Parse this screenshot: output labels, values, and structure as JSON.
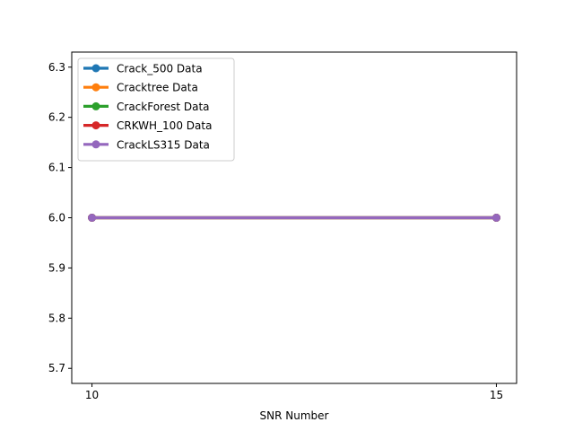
{
  "chart_data": {
    "type": "line",
    "title": "",
    "xlabel": "SNR Number",
    "ylabel": "",
    "x": [
      10,
      15
    ],
    "xlim": [
      9.75,
      15.25
    ],
    "ylim": [
      5.67,
      6.33
    ],
    "x_ticks": [
      "10",
      "15"
    ],
    "y_ticks": [
      "5.7",
      "5.8",
      "5.9",
      "6.0",
      "6.1",
      "6.2",
      "6.3"
    ],
    "grid": false,
    "legend_position": "top-left",
    "series": [
      {
        "name": "Crack_500 Data",
        "values": [
          6.0,
          6.0
        ],
        "color": "#1f77b4"
      },
      {
        "name": "Cracktree Data",
        "values": [
          6.0,
          6.0
        ],
        "color": "#ff7f0e"
      },
      {
        "name": "CrackForest Data",
        "values": [
          6.0,
          6.0
        ],
        "color": "#2ca02c"
      },
      {
        "name": "CRKWH_100 Data",
        "values": [
          6.0,
          6.0
        ],
        "color": "#d62728"
      },
      {
        "name": "CrackLS315 Data",
        "values": [
          6.0,
          6.0
        ],
        "color": "#9467bd"
      }
    ]
  }
}
